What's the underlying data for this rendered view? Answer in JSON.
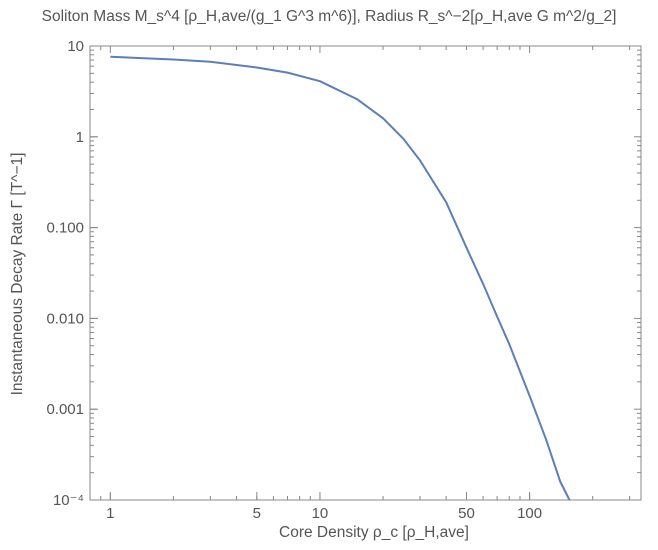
{
  "chart_data": {
    "type": "line",
    "title": "Soliton Mass  M_s^4 [ρ_H,ave/(g_1 G^3 m^6)], Radius  R_s^−2[ρ_H,ave G m^2/g_2]",
    "xlabel": "Core Density  ρ_c [ρ_H,ave]",
    "ylabel": "Instantaneous Decay Rate  Γ [T^−1]",
    "x_scale": "log",
    "y_scale": "log",
    "xlim": [
      0.8,
      340
    ],
    "ylim": [
      0.0001,
      10
    ],
    "x_ticks": [
      {
        "value": 1,
        "label": "1"
      },
      {
        "value": 5,
        "label": "5"
      },
      {
        "value": 10,
        "label": "10"
      },
      {
        "value": 50,
        "label": "50"
      },
      {
        "value": 100,
        "label": "100"
      }
    ],
    "y_ticks": [
      {
        "value": 0.0001,
        "label": "10⁻⁴"
      },
      {
        "value": 0.001,
        "label": "0.001"
      },
      {
        "value": 0.01,
        "label": "0.010"
      },
      {
        "value": 0.1,
        "label": "0.100"
      },
      {
        "value": 1,
        "label": "1"
      },
      {
        "value": 10,
        "label": "10"
      }
    ],
    "series": [
      {
        "color": "#5b7fb8",
        "x": [
          1,
          2,
          3,
          5,
          7,
          10,
          15,
          20,
          25,
          30,
          40,
          50,
          60,
          70,
          80,
          100,
          120,
          140,
          155
        ],
        "y": [
          7.6,
          7.1,
          6.7,
          5.8,
          5.1,
          4.1,
          2.6,
          1.6,
          0.95,
          0.55,
          0.19,
          0.06,
          0.024,
          0.0105,
          0.0052,
          0.0014,
          0.00046,
          0.00016,
          0.0001
        ]
      }
    ]
  }
}
